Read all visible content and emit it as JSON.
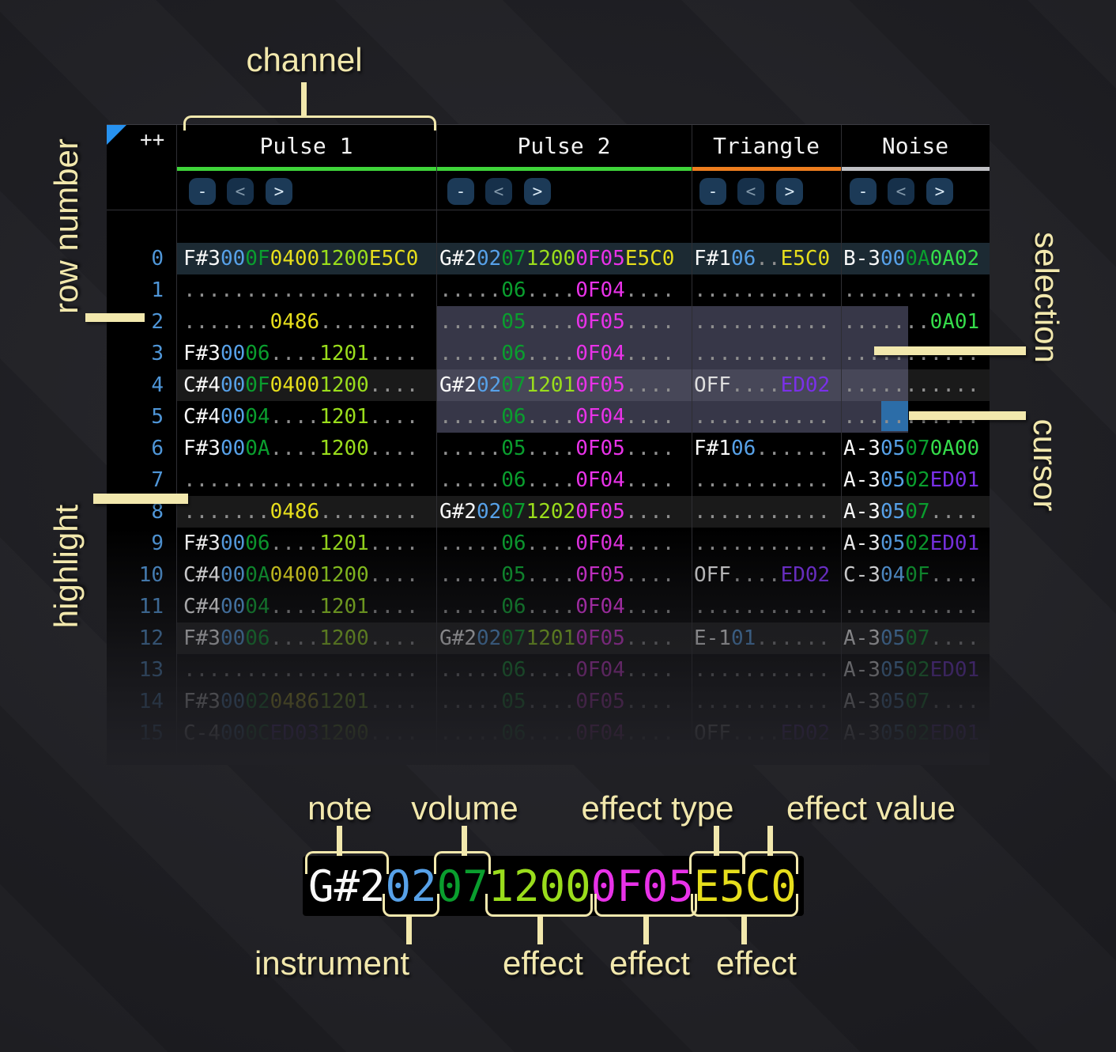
{
  "corner_label": "++",
  "buttons": {
    "remove": "-",
    "prev": "<",
    "next": ">"
  },
  "channels": [
    {
      "name": "Pulse 1",
      "underline": "#3fd43a"
    },
    {
      "name": "Pulse 2",
      "underline": "#3fd43a"
    },
    {
      "name": "Triangle",
      "underline": "#ee7d1e"
    },
    {
      "name": "Noise",
      "underline": "#bfbfc3"
    }
  ],
  "annotations": {
    "channel": "channel",
    "row_number": "row number",
    "highlight": "highlight",
    "selection": "selection",
    "cursor": "cursor",
    "note": "note",
    "volume": "volume",
    "effect_type": "effect type",
    "effect_value": "effect value",
    "instrument": "instrument",
    "effect1": "effect",
    "effect2": "effect",
    "effect3": "effect"
  },
  "legend": {
    "segments": [
      [
        "G#2",
        "note"
      ],
      [
        "02",
        "inst"
      ],
      [
        "07",
        "vol"
      ],
      [
        "1200",
        "fc"
      ],
      [
        "0F05",
        "fm"
      ],
      [
        "E5C0",
        "fy"
      ]
    ]
  },
  "colors": {
    "note": "#f8f8f8",
    "off": "#dedede",
    "inst": "#57a1e8",
    "vol": "#0a9e2e",
    "fg": "#35dc4a",
    "fy": "#e6de1c",
    "fc": "#9add1c",
    "fm": "#e832e8",
    "fp": "#7a30e8",
    "dot": "#8f8f8f",
    "rownum": "#4f96d8",
    "cursor": "#2c6da8",
    "row_major_bg": "#1c2a33",
    "row_minor_bg": "#1a1a1a",
    "selection": "rgba(150,150,196,0.37)",
    "accent": "#f2e8ad",
    "button_bg": "#1c3a57",
    "triangle_corner": "#2792f0"
  },
  "rows": [
    {
      "n": "0",
      "hl": "major",
      "p1": [
        [
          "F#3",
          "note"
        ],
        [
          "00",
          "inst"
        ],
        [
          "0F",
          "vol"
        ],
        [
          "0400",
          "fy"
        ],
        [
          "1200",
          "fc"
        ],
        [
          "E5C0",
          "fy"
        ]
      ],
      "p2": [
        [
          "G#2",
          "note"
        ],
        [
          "02",
          "inst"
        ],
        [
          "07",
          "vol"
        ],
        [
          "1200",
          "fc"
        ],
        [
          "0F05",
          "fm"
        ],
        [
          "E5C0",
          "fy"
        ]
      ],
      "tri": [
        [
          "F#1",
          "note"
        ],
        [
          "06",
          "inst"
        ],
        [
          "..",
          "dot"
        ],
        [
          "E5C0",
          "fy"
        ]
      ],
      "noi": [
        [
          "B-3",
          "note"
        ],
        [
          "00",
          "inst"
        ],
        [
          "0A",
          "vol"
        ],
        [
          "0A02",
          "fg"
        ]
      ]
    },
    {
      "n": "1",
      "hl": "",
      "p1": [
        [
          "...................",
          "dot"
        ]
      ],
      "p2": [
        [
          ".....",
          "dot"
        ],
        [
          "06",
          "vol"
        ],
        [
          "....",
          "dot"
        ],
        [
          "0F04",
          "fm"
        ],
        [
          "....",
          "dot"
        ]
      ],
      "tri": [
        [
          "...........",
          "dot"
        ]
      ],
      "noi": [
        [
          "...........",
          "dot"
        ]
      ]
    },
    {
      "n": "2",
      "hl": "",
      "p1": [
        [
          ".......",
          "dot"
        ],
        [
          "0486",
          "fy"
        ],
        [
          "........",
          "dot"
        ]
      ],
      "p2": [
        [
          ".....",
          "dot"
        ],
        [
          "05",
          "vol"
        ],
        [
          "....",
          "dot"
        ],
        [
          "0F05",
          "fm"
        ],
        [
          "....",
          "dot"
        ]
      ],
      "tri": [
        [
          "...........",
          "dot"
        ]
      ],
      "noi": [
        [
          ".......",
          "dot"
        ],
        [
          "0A01",
          "fg"
        ]
      ]
    },
    {
      "n": "3",
      "hl": "",
      "p1": [
        [
          "F#3",
          "note"
        ],
        [
          "00",
          "inst"
        ],
        [
          "06",
          "vol"
        ],
        [
          "....",
          "dot"
        ],
        [
          "1201",
          "fc"
        ],
        [
          "....",
          "dot"
        ]
      ],
      "p2": [
        [
          ".....",
          "dot"
        ],
        [
          "06",
          "vol"
        ],
        [
          "....",
          "dot"
        ],
        [
          "0F04",
          "fm"
        ],
        [
          "....",
          "dot"
        ]
      ],
      "tri": [
        [
          "...........",
          "dot"
        ]
      ],
      "noi": [
        [
          "...........",
          "dot"
        ]
      ]
    },
    {
      "n": "4",
      "hl": "minor",
      "p1": [
        [
          "C#4",
          "note"
        ],
        [
          "00",
          "inst"
        ],
        [
          "0F",
          "vol"
        ],
        [
          "0400",
          "fy"
        ],
        [
          "1200",
          "fc"
        ],
        [
          "....",
          "dot"
        ]
      ],
      "p2": [
        [
          "G#2",
          "note"
        ],
        [
          "02",
          "inst"
        ],
        [
          "07",
          "vol"
        ],
        [
          "1201",
          "fc"
        ],
        [
          "0F05",
          "fm"
        ],
        [
          "....",
          "dot"
        ]
      ],
      "tri": [
        [
          "OFF",
          "off"
        ],
        [
          "....",
          "dot"
        ],
        [
          "ED02",
          "fp"
        ]
      ],
      "noi": [
        [
          "...........",
          "dot"
        ]
      ]
    },
    {
      "n": "5",
      "hl": "",
      "p1": [
        [
          "C#4",
          "note"
        ],
        [
          "00",
          "inst"
        ],
        [
          "04",
          "vol"
        ],
        [
          "....",
          "dot"
        ],
        [
          "1201",
          "fc"
        ],
        [
          "....",
          "dot"
        ]
      ],
      "p2": [
        [
          ".....",
          "dot"
        ],
        [
          "06",
          "vol"
        ],
        [
          "....",
          "dot"
        ],
        [
          "0F04",
          "fm"
        ],
        [
          "....",
          "dot"
        ]
      ],
      "tri": [
        [
          "...........",
          "dot"
        ]
      ],
      "noi": [
        [
          "...........",
          "dot"
        ]
      ]
    },
    {
      "n": "6",
      "hl": "",
      "p1": [
        [
          "F#3",
          "note"
        ],
        [
          "00",
          "inst"
        ],
        [
          "0A",
          "vol"
        ],
        [
          "....",
          "dot"
        ],
        [
          "1200",
          "fc"
        ],
        [
          "....",
          "dot"
        ]
      ],
      "p2": [
        [
          ".....",
          "dot"
        ],
        [
          "05",
          "vol"
        ],
        [
          "....",
          "dot"
        ],
        [
          "0F05",
          "fm"
        ],
        [
          "....",
          "dot"
        ]
      ],
      "tri": [
        [
          "F#1",
          "note"
        ],
        [
          "06",
          "inst"
        ],
        [
          "......",
          "dot"
        ]
      ],
      "noi": [
        [
          "A-3",
          "note"
        ],
        [
          "05",
          "inst"
        ],
        [
          "07",
          "vol"
        ],
        [
          "0A00",
          "fg"
        ]
      ]
    },
    {
      "n": "7",
      "hl": "",
      "p1": [
        [
          "...................",
          "dot"
        ]
      ],
      "p2": [
        [
          ".....",
          "dot"
        ],
        [
          "06",
          "vol"
        ],
        [
          "....",
          "dot"
        ],
        [
          "0F04",
          "fm"
        ],
        [
          "....",
          "dot"
        ]
      ],
      "tri": [
        [
          "...........",
          "dot"
        ]
      ],
      "noi": [
        [
          "A-3",
          "note"
        ],
        [
          "05",
          "inst"
        ],
        [
          "02",
          "vol"
        ],
        [
          "ED01",
          "fp"
        ]
      ]
    },
    {
      "n": "8",
      "hl": "minor",
      "p1": [
        [
          ".......",
          "dot"
        ],
        [
          "0486",
          "fy"
        ],
        [
          "........",
          "dot"
        ]
      ],
      "p2": [
        [
          "G#2",
          "note"
        ],
        [
          "02",
          "inst"
        ],
        [
          "07",
          "vol"
        ],
        [
          "1202",
          "fc"
        ],
        [
          "0F05",
          "fm"
        ],
        [
          "....",
          "dot"
        ]
      ],
      "tri": [
        [
          "...........",
          "dot"
        ]
      ],
      "noi": [
        [
          "A-3",
          "note"
        ],
        [
          "05",
          "inst"
        ],
        [
          "07",
          "vol"
        ],
        [
          "....",
          "dot"
        ]
      ]
    },
    {
      "n": "9",
      "hl": "",
      "p1": [
        [
          "F#3",
          "note"
        ],
        [
          "00",
          "inst"
        ],
        [
          "06",
          "vol"
        ],
        [
          "....",
          "dot"
        ],
        [
          "1201",
          "fc"
        ],
        [
          "....",
          "dot"
        ]
      ],
      "p2": [
        [
          ".....",
          "dot"
        ],
        [
          "06",
          "vol"
        ],
        [
          "....",
          "dot"
        ],
        [
          "0F04",
          "fm"
        ],
        [
          "....",
          "dot"
        ]
      ],
      "tri": [
        [
          "...........",
          "dot"
        ]
      ],
      "noi": [
        [
          "A-3",
          "note"
        ],
        [
          "05",
          "inst"
        ],
        [
          "02",
          "vol"
        ],
        [
          "ED01",
          "fp"
        ]
      ]
    },
    {
      "n": "10",
      "hl": "",
      "p1": [
        [
          "C#4",
          "note"
        ],
        [
          "00",
          "inst"
        ],
        [
          "0A",
          "vol"
        ],
        [
          "0400",
          "fy"
        ],
        [
          "1200",
          "fc"
        ],
        [
          "....",
          "dot"
        ]
      ],
      "p2": [
        [
          ".....",
          "dot"
        ],
        [
          "05",
          "vol"
        ],
        [
          "....",
          "dot"
        ],
        [
          "0F05",
          "fm"
        ],
        [
          "....",
          "dot"
        ]
      ],
      "tri": [
        [
          "OFF",
          "off"
        ],
        [
          "....",
          "dot"
        ],
        [
          "ED02",
          "fp"
        ]
      ],
      "noi": [
        [
          "C-3",
          "note"
        ],
        [
          "04",
          "inst"
        ],
        [
          "0F",
          "vol"
        ],
        [
          "....",
          "dot"
        ]
      ]
    },
    {
      "n": "11",
      "hl": "",
      "p1": [
        [
          "C#4",
          "note"
        ],
        [
          "00",
          "inst"
        ],
        [
          "04",
          "vol"
        ],
        [
          "....",
          "dot"
        ],
        [
          "1201",
          "fc"
        ],
        [
          "....",
          "dot"
        ]
      ],
      "p2": [
        [
          ".....",
          "dot"
        ],
        [
          "06",
          "vol"
        ],
        [
          "....",
          "dot"
        ],
        [
          "0F04",
          "fm"
        ],
        [
          "....",
          "dot"
        ]
      ],
      "tri": [
        [
          "...........",
          "dot"
        ]
      ],
      "noi": [
        [
          "...........",
          "dot"
        ]
      ]
    },
    {
      "n": "12",
      "hl": "minor",
      "p1": [
        [
          "F#3",
          "note"
        ],
        [
          "00",
          "inst"
        ],
        [
          "06",
          "vol"
        ],
        [
          "....",
          "dot"
        ],
        [
          "1200",
          "fc"
        ],
        [
          "....",
          "dot"
        ]
      ],
      "p2": [
        [
          "G#2",
          "note"
        ],
        [
          "02",
          "inst"
        ],
        [
          "07",
          "vol"
        ],
        [
          "1201",
          "fc"
        ],
        [
          "0F05",
          "fm"
        ],
        [
          "....",
          "dot"
        ]
      ],
      "tri": [
        [
          "E-1",
          "note"
        ],
        [
          "01",
          "inst"
        ],
        [
          "......",
          "dot"
        ]
      ],
      "noi": [
        [
          "A-3",
          "note"
        ],
        [
          "05",
          "inst"
        ],
        [
          "07",
          "vol"
        ],
        [
          "....",
          "dot"
        ]
      ]
    },
    {
      "n": "13",
      "hl": "",
      "p1": [
        [
          "...................",
          "dot"
        ]
      ],
      "p2": [
        [
          ".....",
          "dot"
        ],
        [
          "06",
          "vol"
        ],
        [
          "....",
          "dot"
        ],
        [
          "0F04",
          "fm"
        ],
        [
          "....",
          "dot"
        ]
      ],
      "tri": [
        [
          "...........",
          "dot"
        ]
      ],
      "noi": [
        [
          "A-3",
          "note"
        ],
        [
          "05",
          "inst"
        ],
        [
          "02",
          "vol"
        ],
        [
          "ED01",
          "fp"
        ]
      ]
    },
    {
      "n": "14",
      "hl": "",
      "p1": [
        [
          "F#3",
          "note"
        ],
        [
          "00",
          "inst"
        ],
        [
          "02",
          "vol"
        ],
        [
          "0486",
          "fy"
        ],
        [
          "1201",
          "fc"
        ],
        [
          "....",
          "dot"
        ]
      ],
      "p2": [
        [
          ".....",
          "dot"
        ],
        [
          "05",
          "vol"
        ],
        [
          "....",
          "dot"
        ],
        [
          "0F05",
          "fm"
        ],
        [
          "....",
          "dot"
        ]
      ],
      "tri": [
        [
          "...........",
          "dot"
        ]
      ],
      "noi": [
        [
          "A-3",
          "note"
        ],
        [
          "05",
          "inst"
        ],
        [
          "07",
          "vol"
        ],
        [
          "....",
          "dot"
        ]
      ]
    },
    {
      "n": "15",
      "hl": "",
      "p1": [
        [
          "C-4",
          "note"
        ],
        [
          "00",
          "inst"
        ],
        [
          "0C",
          "vol"
        ],
        [
          "ED03",
          "fp"
        ],
        [
          "1200",
          "fc"
        ],
        [
          "....",
          "dot"
        ]
      ],
      "p2": [
        [
          ".....",
          "dot"
        ],
        [
          "06",
          "vol"
        ],
        [
          "....",
          "dot"
        ],
        [
          "0F04",
          "fm"
        ],
        [
          "....",
          "dot"
        ]
      ],
      "tri": [
        [
          "OFF",
          "off"
        ],
        [
          "....",
          "dot"
        ],
        [
          "ED02",
          "fp"
        ]
      ],
      "noi": [
        [
          "A-3",
          "note"
        ],
        [
          "05",
          "inst"
        ],
        [
          "02",
          "vol"
        ],
        [
          "ED01",
          "fp"
        ]
      ]
    }
  ]
}
